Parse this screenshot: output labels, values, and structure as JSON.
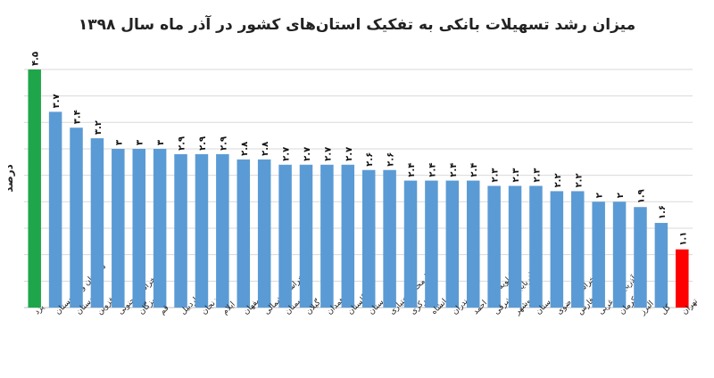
{
  "chart_data": {
    "type": "bar",
    "title": "میزان رشد تسهیلات بانکی به تفکیک استان‌های کشور در آذر ماه سال ۱۳۹۸",
    "xlabel": "",
    "ylabel": "درصد",
    "ylim": [
      0,
      4.6
    ],
    "grid": true,
    "legend": "none",
    "colors": {
      "default": "#5b9bd5",
      "max": "#1fa64a",
      "min": "#ff0000",
      "grid": "#d9d9d9",
      "axis": "#bfbfbf"
    },
    "categories": [
      "یزد",
      "سیستان و بلوچستان",
      "کردستان",
      "قزوین",
      "خراسان جنوبی",
      "هرمزگان",
      "قم",
      "اردبیل",
      "زنجان",
      "ایلام",
      "اصفهان",
      "خراسان شمالی",
      "سمنان",
      "گیلان",
      "همدان",
      "گلستان",
      "لرستان",
      "چهارمحال‌وبختیاری",
      "مرکزی",
      "کرمانشاه",
      "مازندران",
      "کهگیلویه وبویراحمد",
      "آذربایجان شرقی",
      "بوشهر",
      "خوزستان",
      "خراسان رضوی",
      "فارس",
      "آذربایجان غربی",
      "کرمان",
      "البرز",
      "کل",
      "تهران"
    ],
    "values": [
      4.5,
      3.7,
      3.4,
      3.2,
      3,
      3,
      3,
      2.9,
      2.9,
      2.9,
      2.8,
      2.8,
      2.7,
      2.7,
      2.7,
      2.7,
      2.6,
      2.6,
      2.4,
      2.4,
      2.4,
      2.4,
      2.3,
      2.3,
      2.3,
      2.2,
      2.2,
      2,
      2,
      1.9,
      1.6,
      1.1
    ],
    "value_labels": [
      "۴.۵",
      "۳.۷",
      "۳.۴",
      "۳.۲",
      "۳",
      "۳",
      "۳",
      "۲.۹",
      "۲.۹",
      "۲.۹",
      "۲.۸",
      "۲.۸",
      "۲.۷",
      "۲.۷",
      "۲.۷",
      "۲.۷",
      "۲.۶",
      "۲.۶",
      "۲.۴",
      "۲.۴",
      "۲.۴",
      "۲.۴",
      "۲.۳",
      "۲.۳",
      "۲.۳",
      "۲.۲",
      "۲.۲",
      "۲",
      "۲",
      "۱.۹",
      "۱.۶",
      "۱.۱"
    ],
    "bar_colors": [
      "max",
      "default",
      "default",
      "default",
      "default",
      "default",
      "default",
      "default",
      "default",
      "default",
      "default",
      "default",
      "default",
      "default",
      "default",
      "default",
      "default",
      "default",
      "default",
      "default",
      "default",
      "default",
      "default",
      "default",
      "default",
      "default",
      "default",
      "default",
      "default",
      "default",
      "default",
      "min"
    ]
  }
}
